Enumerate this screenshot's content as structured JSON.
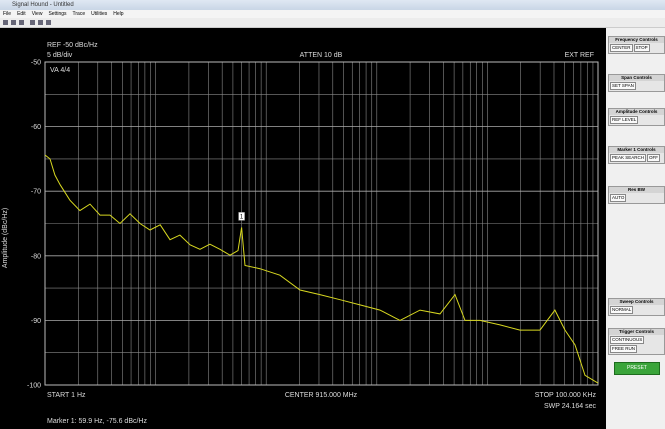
{
  "window": {
    "title": "Signal Hound - Untitled"
  },
  "menu": [
    "File",
    "Edit",
    "View",
    "Settings",
    "Trace",
    "Utilities",
    "Help"
  ],
  "panel": {
    "groups": [
      {
        "title": "Frequency Controls",
        "buttons": [
          "CENTER",
          "STOP"
        ]
      },
      {
        "title": "Span Controls",
        "buttons": [
          "SET SPAN"
        ]
      },
      {
        "title": "Amplitude Controls",
        "buttons": [
          "REF LEVEL"
        ]
      },
      {
        "title": "Marker 1 Controls",
        "buttons": [
          "PEAK SEARCH",
          "OFF"
        ]
      },
      {
        "title": "Res BW",
        "buttons": [
          "AUTO"
        ]
      },
      {
        "title": "Sweep Controls",
        "buttons": [
          "NORMAL"
        ]
      },
      {
        "title": "Trigger Controls",
        "buttons": [
          "CONTINUOUS",
          "FREE RUN"
        ]
      }
    ],
    "preset": "PRESET"
  },
  "chart_data": {
    "type": "line",
    "xscale": "log",
    "grid": true,
    "color": "#d8d820",
    "ylabel": "Amplitude (dBc/Hz)",
    "ref_level": "REF -50 dBc/Hz",
    "scale": "5 dB/div",
    "attenuation": "ATTEN 10 dB",
    "reference": "EXT REF",
    "trace_info": "VA 4/4",
    "start": "START 1 Hz",
    "center": "CENTER 915.000 MHz",
    "stop": "STOP 100.000 KHz",
    "sweep": "SWP 24.164 sec",
    "marker_readout": "Marker 1: 59.9 Hz, -75.6 dBc/Hz",
    "marker": {
      "label": "1",
      "x": 59.9,
      "y": -75.6
    },
    "xlim": [
      1,
      100000
    ],
    "ylim": [
      -100,
      -50
    ],
    "yticks": [
      -50,
      -60,
      -70,
      -80,
      -90,
      -100
    ],
    "yminorticks": [
      -55,
      -65,
      -75,
      -85,
      -95
    ],
    "xgrid": [
      1,
      2,
      3,
      4,
      5,
      6,
      7,
      8,
      9,
      10,
      20,
      30,
      40,
      50,
      60,
      70,
      80,
      90,
      100,
      200,
      300,
      400,
      500,
      600,
      700,
      800,
      900,
      1000,
      2000,
      3000,
      4000,
      5000,
      6000,
      7000,
      8000,
      9000,
      10000,
      20000,
      30000,
      40000,
      50000,
      60000,
      70000,
      80000,
      90000,
      100000
    ],
    "x": [
      1,
      1.11,
      1.23,
      1.37,
      1.68,
      2.07,
      2.55,
      3.14,
      3.87,
      4.77,
      5.87,
      7.23,
      8.9,
      11,
      13.5,
      16.6,
      20.5,
      25.2,
      31,
      38.2,
      47.1,
      55.6,
      59.9,
      64.3,
      87.9,
      133,
      202,
      306,
      465,
      705,
      1070,
      1622,
      2459,
      3727,
      5093,
      6270,
      8570,
      13000,
      19700,
      29900,
      40800,
      50300,
      62000,
      76300,
      100000
    ],
    "values": [
      -64.4,
      -65,
      -67.5,
      -69,
      -71.4,
      -73,
      -72,
      -73.7,
      -73.7,
      -75,
      -73.5,
      -75,
      -76,
      -75.2,
      -77.5,
      -76.8,
      -78.3,
      -79,
      -78.2,
      -79,
      -79.9,
      -79.2,
      -75.6,
      -81.5,
      -82,
      -83,
      -85.3,
      -86,
      -86.8,
      -87.6,
      -88.4,
      -90,
      -88.4,
      -89,
      -86,
      -90,
      -90,
      -90.7,
      -91.5,
      -91.5,
      -88.4,
      -91.5,
      -93.8,
      -98.5,
      -99.7
    ]
  }
}
